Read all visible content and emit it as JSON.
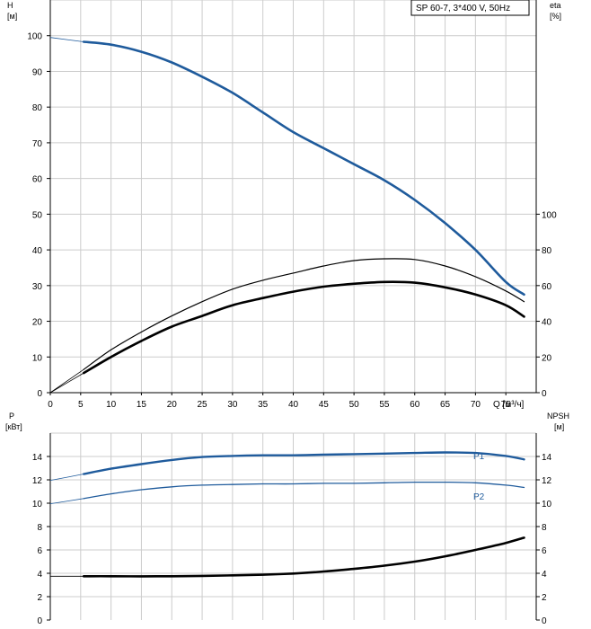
{
  "title": "SP 60-7, 3*400 V, 50Hz",
  "colors": {
    "blue": "#1f5b9c",
    "black": "#000000",
    "grid": "#cccccc"
  },
  "chart_data": [
    {
      "type": "line",
      "panel": "top",
      "x_axis": {
        "label": "Q [м³/ч]",
        "range": [
          0,
          80
        ],
        "ticks": [
          0,
          5,
          10,
          15,
          20,
          25,
          30,
          35,
          40,
          45,
          50,
          55,
          60,
          65,
          70,
          75
        ]
      },
      "y_left": {
        "label_top": "H",
        "label_unit": "[м]",
        "range": [
          0,
          110
        ],
        "ticks": [
          0,
          10,
          20,
          30,
          40,
          50,
          60,
          70,
          80,
          90,
          100
        ]
      },
      "y_right": {
        "label_top": "eta",
        "label_unit": "[%]",
        "range": [
          0,
          220
        ],
        "ticks": [
          0,
          20,
          40,
          60,
          80,
          100
        ]
      },
      "grid": true,
      "series": [
        {
          "name": "H",
          "axis": "left",
          "color": "#1f5b9c",
          "width": 2.6,
          "x": [
            5.5,
            10,
            15,
            20,
            25,
            30,
            35,
            40,
            45,
            50,
            55,
            60,
            65,
            70,
            75,
            78
          ],
          "y": [
            98.3,
            97.5,
            95.5,
            92.5,
            88.5,
            84,
            78.5,
            73,
            68.5,
            64,
            59.5,
            54,
            47.5,
            40,
            31,
            27.5
          ],
          "extension": {
            "x": [
              0,
              5.5
            ],
            "y": [
              99.5,
              98.3
            ]
          }
        },
        {
          "name": "eta_thin",
          "axis": "left",
          "color": "#000000",
          "width": 1.2,
          "x": [
            5.5,
            10,
            15,
            20,
            25,
            30,
            35,
            40,
            45,
            50,
            55,
            60,
            65,
            70,
            75,
            78
          ],
          "y": [
            6.5,
            12,
            17,
            21.5,
            25.5,
            29,
            31.5,
            33.5,
            35.5,
            37,
            37.5,
            37.3,
            35.5,
            32.5,
            28.5,
            25.5
          ],
          "extension": {
            "x": [
              0,
              5.5
            ],
            "y": [
              0,
              6.5
            ]
          }
        },
        {
          "name": "eta_thick",
          "axis": "left",
          "color": "#000000",
          "width": 2.6,
          "x": [
            5.5,
            10,
            15,
            20,
            25,
            30,
            35,
            40,
            45,
            50,
            55,
            60,
            65,
            70,
            75,
            78
          ],
          "y": [
            5.5,
            10,
            14.5,
            18.5,
            21.5,
            24.5,
            26.5,
            28.3,
            29.7,
            30.5,
            31,
            30.8,
            29.5,
            27.5,
            24.5,
            21.3
          ],
          "extension": {
            "x": [
              0,
              5.5
            ],
            "y": [
              0,
              5.5
            ]
          }
        }
      ]
    },
    {
      "type": "line",
      "panel": "bottom",
      "x_axis": {
        "range": [
          0,
          80
        ]
      },
      "y_left": {
        "label_top": "P",
        "label_unit": "[кВт]",
        "range": [
          0,
          16
        ],
        "ticks": [
          0,
          2,
          4,
          6,
          8,
          10,
          12,
          14
        ]
      },
      "y_right": {
        "label_top": "NPSH",
        "label_unit": "[м]",
        "range": [
          0,
          16
        ],
        "ticks": [
          0,
          2,
          4,
          6,
          8,
          10,
          12,
          14
        ]
      },
      "grid": true,
      "series": [
        {
          "name": "P1",
          "label": "P1",
          "color": "#1f5b9c",
          "width": 2.4,
          "x": [
            5.5,
            10,
            15,
            20,
            25,
            30,
            35,
            40,
            45,
            50,
            55,
            60,
            65,
            70,
            75,
            78
          ],
          "y": [
            12.5,
            12.95,
            13.35,
            13.7,
            13.95,
            14.05,
            14.1,
            14.1,
            14.15,
            14.2,
            14.25,
            14.3,
            14.35,
            14.3,
            14.05,
            13.75
          ],
          "extension": {
            "x": [
              0,
              5.5
            ],
            "y": [
              11.95,
              12.5
            ]
          }
        },
        {
          "name": "P2",
          "label": "P2",
          "color": "#1f5b9c",
          "width": 1.3,
          "x": [
            5.5,
            10,
            15,
            20,
            25,
            30,
            35,
            40,
            45,
            50,
            55,
            60,
            65,
            70,
            75,
            78
          ],
          "y": [
            10.4,
            10.8,
            11.15,
            11.4,
            11.55,
            11.6,
            11.65,
            11.65,
            11.7,
            11.7,
            11.75,
            11.8,
            11.8,
            11.75,
            11.55,
            11.35
          ],
          "extension": {
            "x": [
              0,
              5.5
            ],
            "y": [
              9.95,
              10.4
            ]
          }
        },
        {
          "name": "NPSH",
          "color": "#000000",
          "width": 2.6,
          "x": [
            5.5,
            10,
            15,
            20,
            25,
            30,
            35,
            40,
            45,
            50,
            55,
            60,
            65,
            70,
            75,
            78
          ],
          "y": [
            3.75,
            3.75,
            3.74,
            3.75,
            3.78,
            3.82,
            3.88,
            3.98,
            4.15,
            4.38,
            4.65,
            5.0,
            5.45,
            6.0,
            6.6,
            7.05
          ],
          "extension": {
            "x": [
              0,
              5.5
            ],
            "y": [
              3.75,
              3.75
            ]
          }
        }
      ]
    }
  ]
}
